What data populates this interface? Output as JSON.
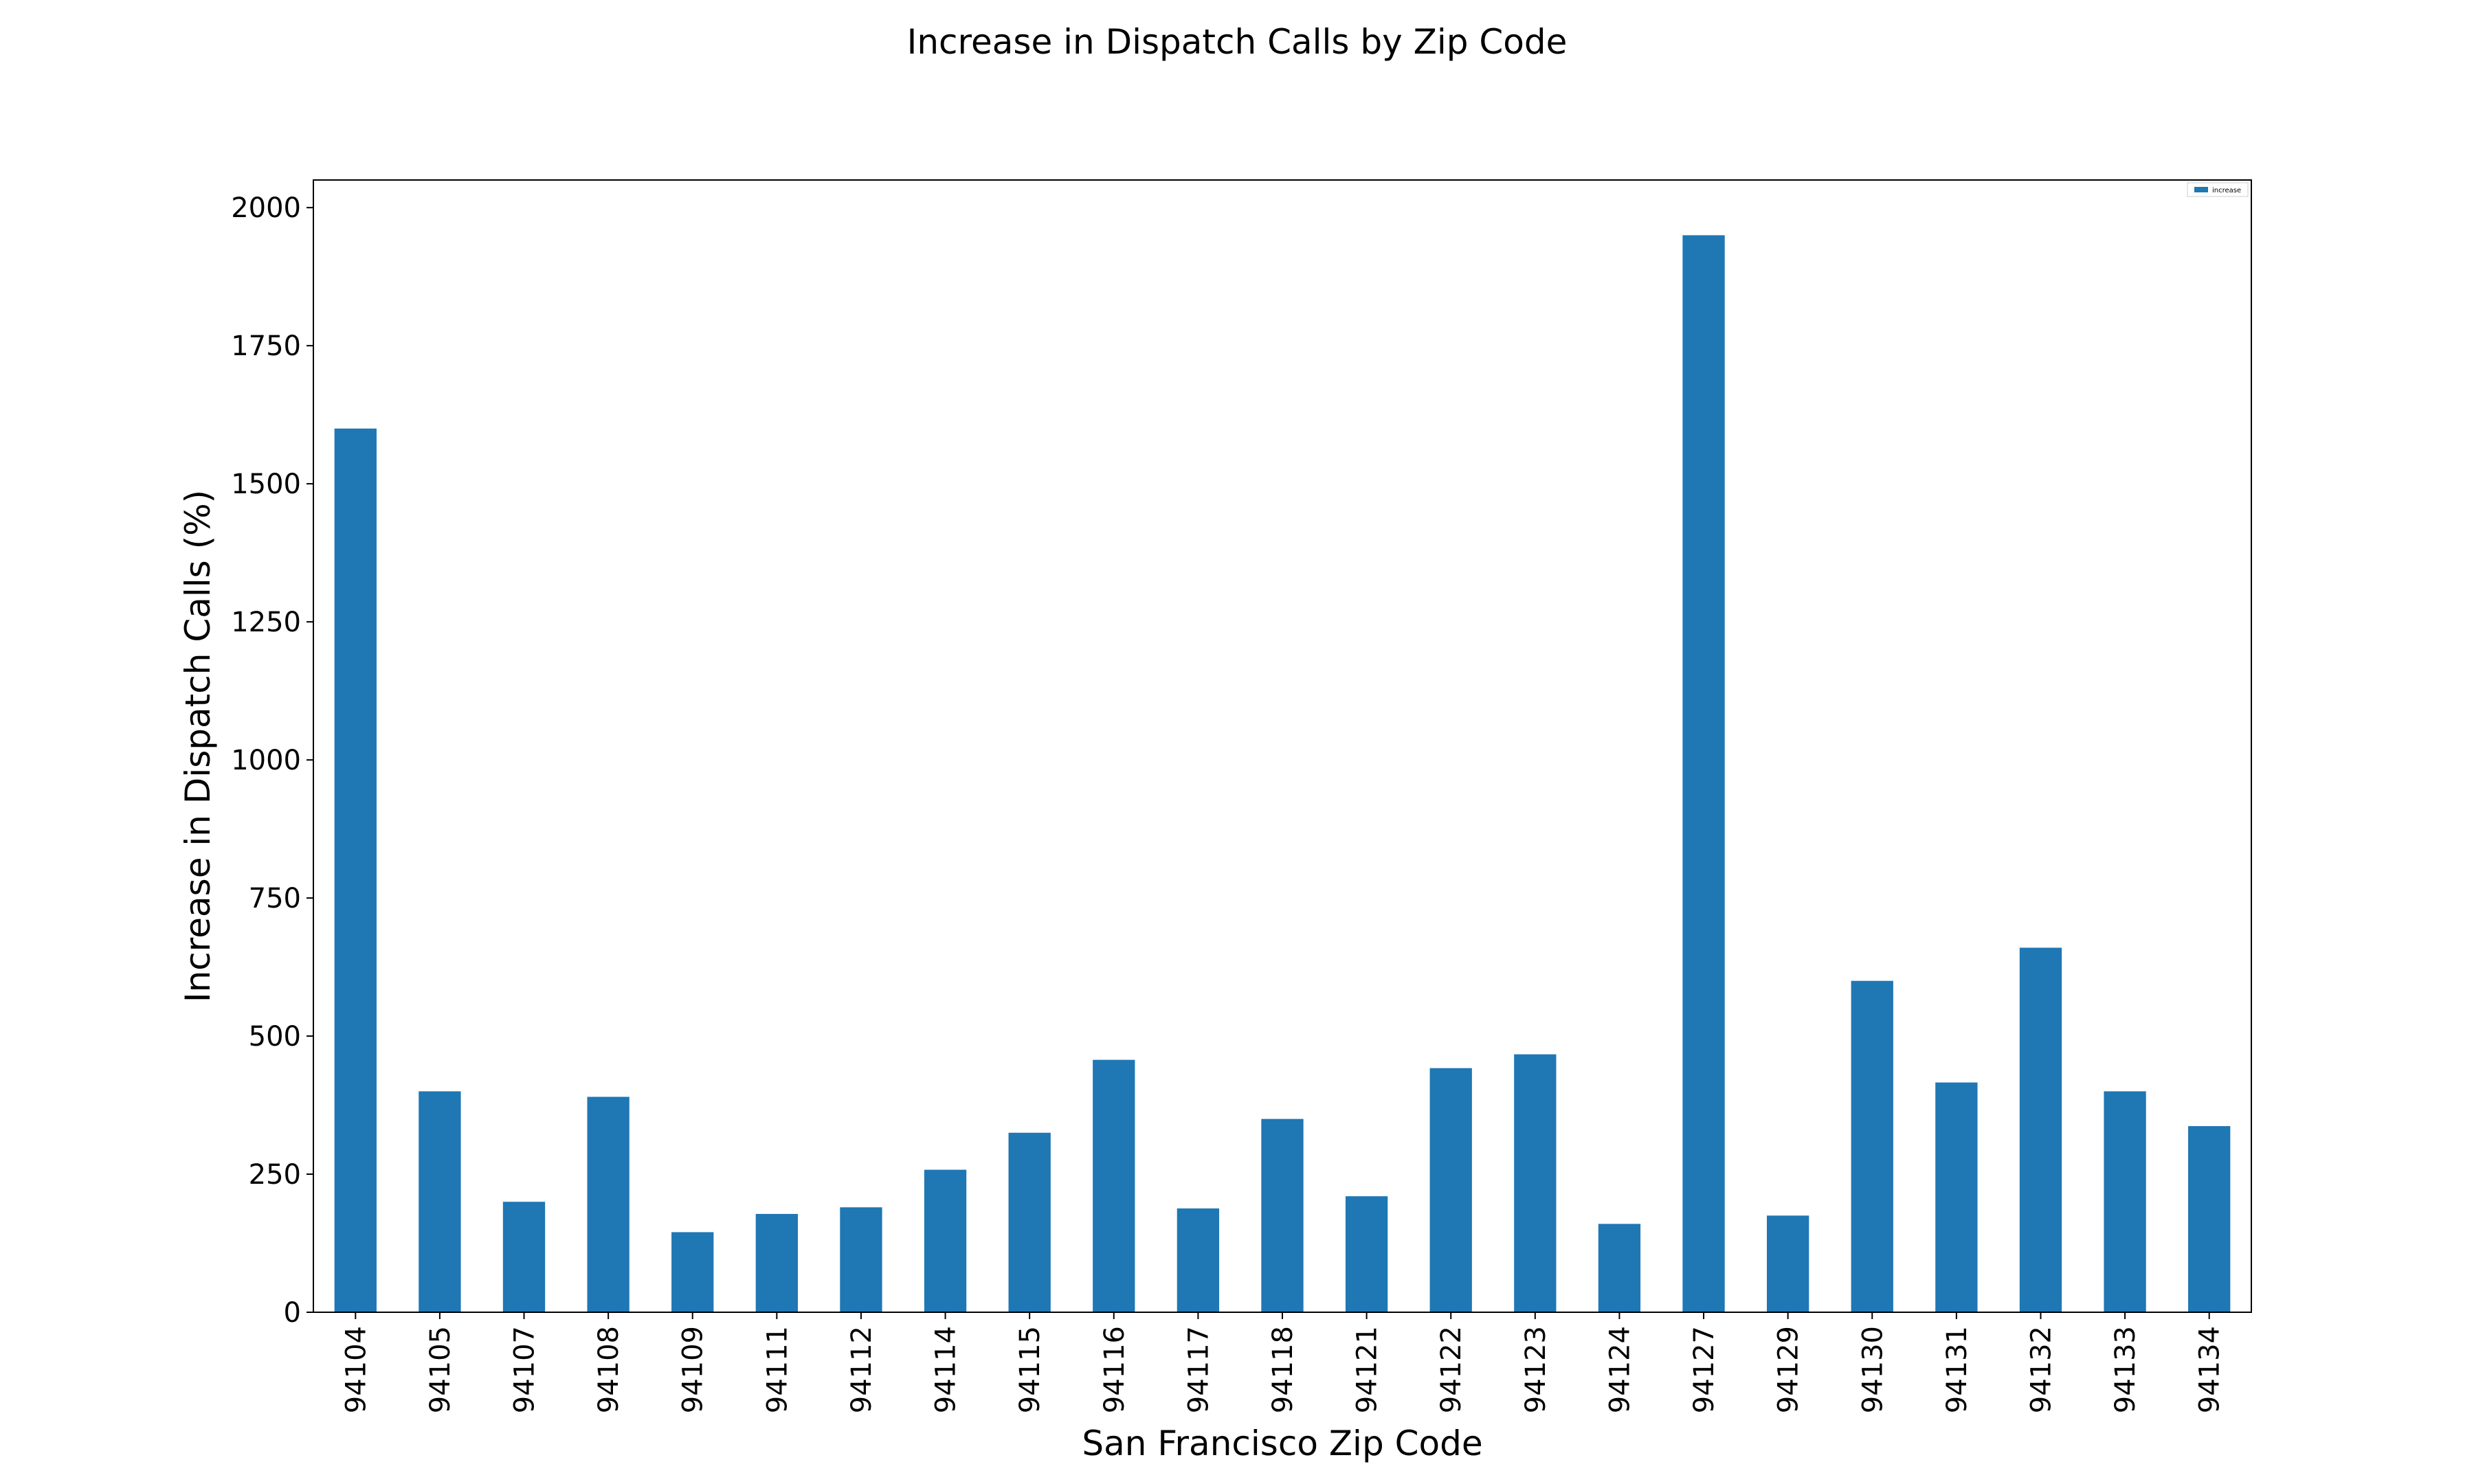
{
  "chart_data": {
    "type": "bar",
    "title": "Increase in Dispatch Calls by Zip Code",
    "xlabel": "San Francisco Zip Code",
    "ylabel": "Increase in Dispatch Calls (%)",
    "categories": [
      "94104",
      "94105",
      "94107",
      "94108",
      "94109",
      "94111",
      "94112",
      "94114",
      "94115",
      "94116",
      "94117",
      "94118",
      "94121",
      "94122",
      "94123",
      "94124",
      "94127",
      "94129",
      "94130",
      "94131",
      "94132",
      "94133",
      "94134"
    ],
    "series": [
      {
        "name": "increase",
        "color": "#1f77b4",
        "values": [
          1600,
          400,
          200,
          390,
          145,
          178,
          190,
          258,
          325,
          457,
          188,
          350,
          210,
          442,
          467,
          160,
          1950,
          175,
          600,
          416,
          660,
          400,
          337
        ]
      }
    ],
    "ylim": [
      0,
      2050
    ],
    "yticks": [
      0,
      250,
      500,
      750,
      1000,
      1250,
      1500,
      1750,
      2000
    ],
    "grid": false,
    "legend_position": "top-right"
  }
}
